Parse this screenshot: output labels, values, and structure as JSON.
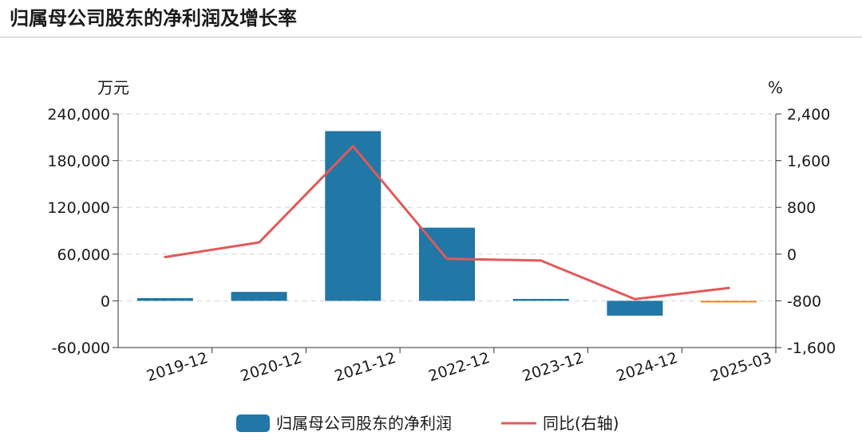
{
  "page": {
    "title": "归属母公司股东的净利润及增长率"
  },
  "chart_data": {
    "type": "bar",
    "categories": [
      "2019-12",
      "2020-12",
      "2021-12",
      "2022-12",
      "2023-12",
      "2024-12",
      "2025-03"
    ],
    "y_left": {
      "unit": "万元",
      "min": -60000,
      "max": 240000,
      "ticks": [
        -60000,
        0,
        60000,
        120000,
        180000,
        240000
      ],
      "tick_labels": [
        "-60,000",
        "0",
        "60,000",
        "120,000",
        "180,000",
        "240,000"
      ]
    },
    "y_right": {
      "unit": "%",
      "min": -1600,
      "max": 2400,
      "ticks": [
        -1600,
        -800,
        0,
        800,
        1600,
        2400
      ],
      "tick_labels": [
        "-1,600",
        "-800",
        "0",
        "800",
        "1,600",
        "2,400"
      ]
    },
    "series": [
      {
        "name": "归属母公司股东的净利润",
        "type": "bar",
        "axis": "left",
        "color": "#2177a5",
        "highlight_color": "#f0831e",
        "values": [
          3500,
          11500,
          218000,
          94000,
          2500,
          -19000,
          -1500
        ]
      },
      {
        "name": "同比(右轴)",
        "type": "line",
        "axis": "right",
        "color": "#e05a5a",
        "values": [
          -50,
          200,
          1850,
          -80,
          -110,
          -770,
          -580
        ]
      }
    ],
    "grid": true,
    "legend_position": "bottom-center"
  }
}
